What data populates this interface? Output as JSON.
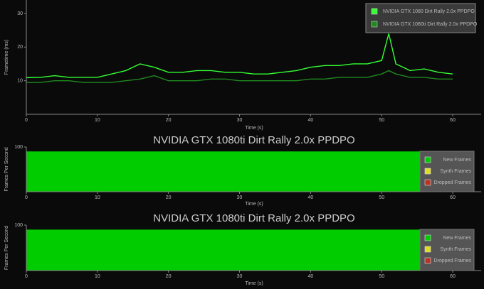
{
  "chart_data": [
    {
      "type": "line",
      "x_label": "Time (s)",
      "y_label": "Frametime (ms)",
      "x": [
        0,
        2,
        4,
        6,
        8,
        10,
        12,
        14,
        16,
        18,
        20,
        22,
        24,
        26,
        28,
        30,
        32,
        34,
        36,
        38,
        40,
        42,
        44,
        46,
        48,
        50,
        51,
        52,
        54,
        56,
        58,
        60
      ],
      "series": [
        {
          "name": "NVIDIA GTX 1080 Dirt Rally 2.0x PPDPO",
          "color": "#33ff33",
          "values": [
            10.9,
            11,
            11.5,
            11,
            11,
            11,
            12,
            13,
            15,
            14,
            12.5,
            12.5,
            13,
            13,
            12.5,
            12.5,
            12,
            12,
            12.5,
            13,
            14,
            14.5,
            14.5,
            15,
            15,
            16,
            24,
            15,
            13,
            13.5,
            12.5,
            12
          ]
        },
        {
          "name": "NVIDIA GTX 1080ti Dirt Rally 2.0x PPDPO",
          "color": "#1f8a1f",
          "values": [
            9.5,
            9.5,
            10,
            10,
            9.5,
            9.5,
            9.5,
            10,
            10.5,
            11.5,
            10,
            10,
            10,
            10.5,
            10.5,
            10,
            10,
            10,
            10,
            10,
            10.5,
            10.5,
            11,
            11,
            11,
            12,
            13,
            12,
            11,
            11,
            10.5,
            10.5
          ]
        }
      ],
      "xlim": [
        0,
        64
      ],
      "xticks": [
        0,
        10,
        20,
        30,
        40,
        50,
        60
      ],
      "ylim": [
        0,
        34
      ],
      "yticks": [
        10,
        20,
        30
      ]
    },
    {
      "type": "area",
      "title": "NVIDIA GTX 1080ti Dirt Rally 2.0x PPDPO",
      "x_label": "Time (s)",
      "y_label": "Frames Per Second",
      "x": [
        0,
        63
      ],
      "series": [
        {
          "name": "New Frames",
          "color": "#00cc00",
          "values": [
            90,
            90
          ]
        },
        {
          "name": "Synth Frames",
          "color": "#dddd22",
          "values": [
            0,
            0
          ]
        },
        {
          "name": "Dropped Frames",
          "color": "#bb3322",
          "values": [
            0,
            0
          ]
        }
      ],
      "xlim": [
        0,
        64
      ],
      "xticks": [
        0,
        10,
        20,
        30,
        40,
        50,
        60
      ],
      "ylim": [
        0,
        100
      ],
      "yticks": [
        100
      ]
    },
    {
      "type": "area",
      "title": "NVIDIA GTX 1080ti Dirt Rally 2.0x PPDPO",
      "x_label": "Time (s)",
      "y_label": "Frames Per Second",
      "x": [
        0,
        63
      ],
      "series": [
        {
          "name": "New Frames",
          "color": "#00cc00",
          "values": [
            90,
            90
          ]
        },
        {
          "name": "Synth Frames",
          "color": "#dddd22",
          "values": [
            0,
            0
          ]
        },
        {
          "name": "Dropped Frames",
          "color": "#bb3322",
          "values": [
            0,
            0
          ]
        }
      ],
      "xlim": [
        0,
        64
      ],
      "xticks": [
        0,
        10,
        20,
        30,
        40,
        50,
        60
      ],
      "ylim": [
        0,
        100
      ],
      "yticks": [
        100
      ]
    }
  ]
}
